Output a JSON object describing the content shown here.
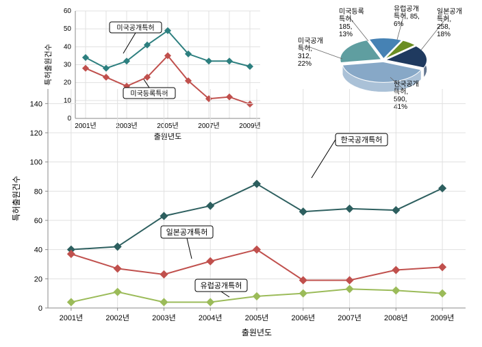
{
  "main_chart": {
    "type": "line",
    "background_color": "#ffffff",
    "grid_color": "#e0e0e0",
    "axis_color": "#888888",
    "xlabel": "출원년도",
    "ylabel": "특허출원건수",
    "label_fontsize": 12,
    "tick_fontsize": 11,
    "ylim": [
      0,
      150
    ],
    "ytick_step": 20,
    "yticks": [
      0,
      20,
      40,
      60,
      80,
      100,
      120,
      140
    ],
    "categories": [
      "2001년",
      "2002년",
      "2003년",
      "2004년",
      "2005년",
      "2006년",
      "2007년",
      "2008년",
      "2009년"
    ],
    "series": [
      {
        "name": "한국공개특허",
        "label": "한국공개특허",
        "color": "#2d5f5f",
        "marker": "diamond",
        "values": [
          40,
          42,
          63,
          70,
          85,
          66,
          68,
          67,
          82
        ]
      },
      {
        "name": "일본공개특허",
        "label": "일본공개특허",
        "color": "#c0504d",
        "marker": "diamond",
        "values": [
          37,
          27,
          23,
          32,
          40,
          19,
          19,
          26,
          28
        ]
      },
      {
        "name": "유럽공개특허",
        "label": "유럽공개특허",
        "color": "#9bbb59",
        "marker": "diamond",
        "values": [
          4,
          11,
          4,
          4,
          8,
          10,
          13,
          12,
          10
        ]
      }
    ],
    "line_width": 2,
    "marker_size": 5
  },
  "inset_chart": {
    "type": "line",
    "background_color": "#ffffff",
    "grid_color": "#e0e0e0",
    "axis_color": "#888888",
    "xlabel": "출원년도",
    "ylabel": "특허출원건수",
    "label_fontsize": 11,
    "tick_fontsize": 10,
    "ylim": [
      0,
      60
    ],
    "ytick_step": 10,
    "yticks": [
      0,
      10,
      20,
      30,
      40,
      50,
      60
    ],
    "categories": [
      "2001년",
      "2003년",
      "2005년",
      "2007년",
      "2009년"
    ],
    "all_x_points": [
      2001,
      2002,
      2003,
      2004,
      2005,
      2006,
      2007,
      2008,
      2009
    ],
    "series": [
      {
        "name": "미국공개특허",
        "label": "미국공개특허",
        "color": "#2d7f7f",
        "marker": "diamond",
        "values": [
          34,
          28,
          32,
          41,
          49,
          36,
          32,
          32,
          29
        ]
      },
      {
        "name": "미국등록특허",
        "label": "미국등록특허",
        "color": "#c0504d",
        "marker": "diamond",
        "values": [
          28,
          23,
          18,
          23,
          35,
          21,
          11,
          12,
          8
        ]
      }
    ],
    "line_width": 2,
    "marker_size": 4
  },
  "pie_chart": {
    "type": "pie",
    "slices": [
      {
        "label": "미국공개특허",
        "value": 312,
        "percent": "22%",
        "color": "#5f9ea0"
      },
      {
        "label": "미국등록특허",
        "value": 185,
        "percent": "13%",
        "color": "#4682b4"
      },
      {
        "label": "유럽공개특허",
        "value": 85,
        "percent": "6%",
        "color": "#6b8e23"
      },
      {
        "label": "일본공개특허",
        "value": 258,
        "percent": "18%",
        "color": "#1f3a5f"
      },
      {
        "label": "한국공개특허",
        "value": 590,
        "percent": "41%",
        "color": "#87a8c7"
      }
    ],
    "label_fontsize": 10,
    "background_color": "#ffffff"
  }
}
